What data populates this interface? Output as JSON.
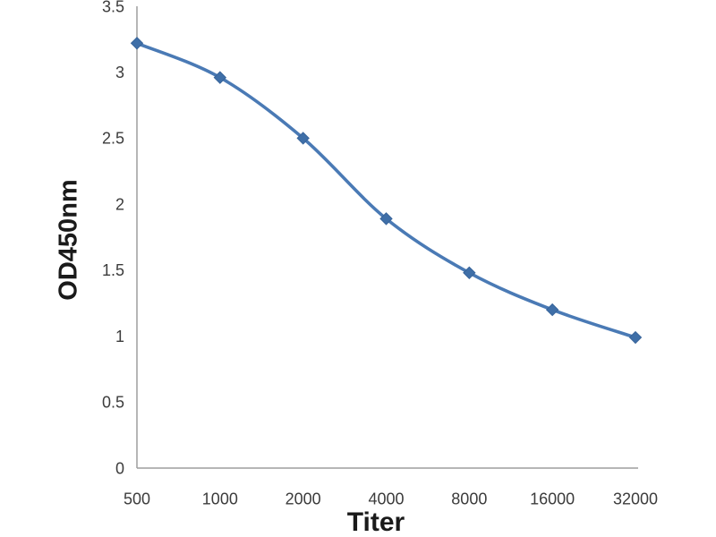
{
  "chart_data": {
    "type": "line",
    "categories": [
      "500",
      "1000",
      "2000",
      "4000",
      "8000",
      "16000",
      "32000"
    ],
    "series": [
      {
        "name": "OD450nm",
        "values": [
          3.22,
          2.96,
          2.5,
          1.89,
          1.48,
          1.2,
          0.99
        ]
      }
    ],
    "xlabel": "Titer",
    "ylabel": "OD450nm",
    "ylim": [
      0,
      3.5
    ],
    "y_ticks": [
      0,
      0.5,
      1,
      1.5,
      2,
      2.5,
      3,
      3.5
    ],
    "y_tick_labels": [
      "0",
      "0.5",
      "1",
      "1.5",
      "2",
      "2.5",
      "3",
      "3.5"
    ],
    "grid": false,
    "legend": "none",
    "smooth": true,
    "marker": "diamond",
    "line_color": "#4a7ab5",
    "marker_fill": "#3f6fa8",
    "marker_stroke": "#38649a",
    "axis_color": "#9e9e9e",
    "tick_label_color": "#3c3c3c",
    "axis_title_color": "#1a1a1a",
    "background": "#ffffff"
  }
}
